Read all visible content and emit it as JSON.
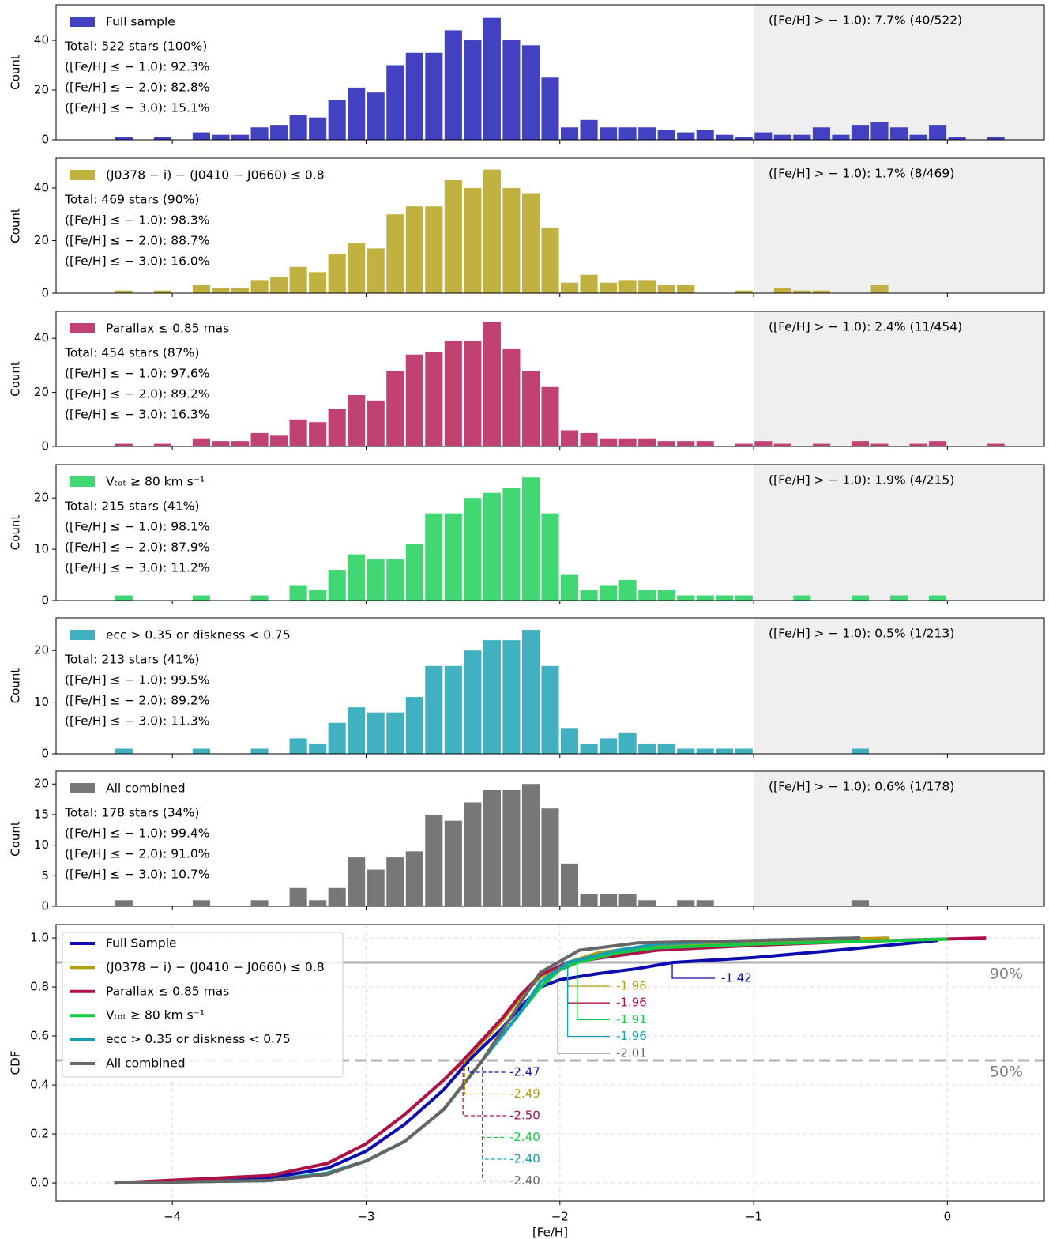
{
  "chart_data": [
    {
      "type": "histogram",
      "xlim": [
        -4.6,
        0.5
      ],
      "ylim": [
        0,
        54.3
      ],
      "yticks": [
        0,
        20,
        40
      ],
      "ylabel": "Count",
      "shade_above": -1,
      "bins": [
        -4.3,
        -4.2,
        -4.1,
        -4.0,
        -3.9,
        -3.8,
        -3.7,
        -3.6,
        -3.5,
        -3.4,
        -3.3,
        -3.2,
        -3.1,
        -3.0,
        -2.9,
        -2.8,
        -2.7,
        -2.6,
        -2.5,
        -2.4,
        -2.3,
        -2.2,
        -2.1,
        -2.0,
        -1.9,
        -1.8,
        -1.7,
        -1.6,
        -1.5,
        -1.4,
        -1.3,
        -1.2,
        -1.1,
        -1.0,
        -0.9,
        -0.8,
        -0.7,
        -0.6,
        -0.5,
        -0.4,
        -0.3,
        -0.2,
        -0.1,
        0.0,
        0.1,
        0.2,
        0.3
      ],
      "series": [
        {
          "name": "Full sample",
          "color": "#4141c2",
          "values": [
            1,
            0,
            1,
            0,
            3,
            2,
            2,
            5,
            6,
            10,
            9,
            16,
            21,
            19,
            30,
            35,
            35,
            44,
            40,
            49,
            40,
            38,
            25,
            5,
            8,
            5,
            5,
            5,
            4,
            3,
            4,
            2,
            1,
            3,
            2,
            2,
            5,
            2,
            6,
            7,
            5,
            2,
            6,
            1,
            0,
            1
          ]
        }
      ],
      "annotations": [
        "Total: 522 stars (100%)",
        "([Fe/H] ≤ − 1.0): 92.3%",
        "([Fe/H] ≤ − 2.0): 82.8%",
        "([Fe/H] ≤ − 3.0): 15.1%"
      ],
      "right_annotation": "([Fe/H] > − 1.0): 7.7% (40/522)"
    },
    {
      "type": "histogram",
      "xlim": [
        -4.6,
        0.5
      ],
      "ylim": [
        0,
        51.4
      ],
      "yticks": [
        0,
        20,
        40
      ],
      "ylabel": "Count",
      "shade_above": -1,
      "bins": [
        -4.3,
        -4.2,
        -4.1,
        -4.0,
        -3.9,
        -3.8,
        -3.7,
        -3.6,
        -3.5,
        -3.4,
        -3.3,
        -3.2,
        -3.1,
        -3.0,
        -2.9,
        -2.8,
        -2.7,
        -2.6,
        -2.5,
        -2.4,
        -2.3,
        -2.2,
        -2.1,
        -2.0,
        -1.9,
        -1.8,
        -1.7,
        -1.6,
        -1.5,
        -1.4,
        -1.3,
        -1.2,
        -1.1,
        -1.0,
        -0.9,
        -0.8,
        -0.7,
        -0.6,
        -0.5,
        -0.4,
        -0.3,
        -0.2,
        -0.1,
        0.0,
        0.1,
        0.2,
        0.3
      ],
      "series": [
        {
          "name": "(J0378 − i) − (J0410 − J0660) ≤ 0.8",
          "color": "#c1b140",
          "values": [
            1,
            0,
            1,
            0,
            3,
            2,
            2,
            5,
            6,
            10,
            8,
            15,
            19,
            17,
            30,
            33,
            33,
            43,
            40,
            47,
            40,
            38,
            25,
            4,
            7,
            4,
            5,
            5,
            3,
            3,
            0,
            0,
            1,
            0,
            2,
            1,
            1,
            0,
            0,
            3,
            0,
            0,
            0,
            0,
            0,
            0
          ]
        }
      ],
      "annotations": [
        "Total: 469 stars (90%)",
        "([Fe/H] ≤ − 1.0): 98.3%",
        "([Fe/H] ≤ − 2.0): 88.7%",
        "([Fe/H] ≤ − 3.0): 16.0%"
      ],
      "right_annotation": "([Fe/H] > − 1.0): 1.7% (8/469)"
    },
    {
      "type": "histogram",
      "xlim": [
        -4.6,
        0.5
      ],
      "ylim": [
        0,
        50
      ],
      "yticks": [
        0,
        20,
        40
      ],
      "ylabel": "Count",
      "shade_above": -1,
      "bins": [
        -4.3,
        -4.2,
        -4.1,
        -4.0,
        -3.9,
        -3.8,
        -3.7,
        -3.6,
        -3.5,
        -3.4,
        -3.3,
        -3.2,
        -3.1,
        -3.0,
        -2.9,
        -2.8,
        -2.7,
        -2.6,
        -2.5,
        -2.4,
        -2.3,
        -2.2,
        -2.1,
        -2.0,
        -1.9,
        -1.8,
        -1.7,
        -1.6,
        -1.5,
        -1.4,
        -1.3,
        -1.2,
        -1.1,
        -1.0,
        -0.9,
        -0.8,
        -0.7,
        -0.6,
        -0.5,
        -0.4,
        -0.3,
        -0.2,
        -0.1,
        0.0,
        0.1,
        0.2,
        0.3
      ],
      "series": [
        {
          "name": "Parallax ≤ 0.85 mas",
          "color": "#c14272",
          "values": [
            1,
            0,
            1,
            0,
            3,
            2,
            2,
            5,
            4,
            10,
            9,
            14,
            19,
            17,
            28,
            34,
            35,
            39,
            39,
            46,
            36,
            28,
            22,
            6,
            5,
            3,
            3,
            3,
            2,
            2,
            2,
            0,
            1,
            2,
            1,
            0,
            1,
            0,
            2,
            1,
            0,
            1,
            2,
            0,
            0,
            1
          ]
        }
      ],
      "annotations": [
        "Total: 454 stars (87%)",
        "([Fe/H] ≤ − 1.0): 97.6%",
        "([Fe/H] ≤ − 2.0): 89.2%",
        "([Fe/H] ≤ − 3.0): 16.3%"
      ],
      "right_annotation": "([Fe/H] > − 1.0): 2.4% (11/454)"
    },
    {
      "type": "histogram",
      "xlim": [
        -4.6,
        0.5
      ],
      "ylim": [
        0,
        26.5
      ],
      "yticks": [
        0,
        10,
        20
      ],
      "ylabel": "Count",
      "shade_above": -1,
      "bins": [
        -4.3,
        -4.2,
        -4.1,
        -4.0,
        -3.9,
        -3.8,
        -3.7,
        -3.6,
        -3.5,
        -3.4,
        -3.3,
        -3.2,
        -3.1,
        -3.0,
        -2.9,
        -2.8,
        -2.7,
        -2.6,
        -2.5,
        -2.4,
        -2.3,
        -2.2,
        -2.1,
        -2.0,
        -1.9,
        -1.8,
        -1.7,
        -1.6,
        -1.5,
        -1.4,
        -1.3,
        -1.2,
        -1.1,
        -1.0,
        -0.9,
        -0.8,
        -0.7,
        -0.6,
        -0.5,
        -0.4,
        -0.3,
        -0.2,
        -0.1,
        0.0,
        0.1,
        0.2,
        0.3
      ],
      "series": [
        {
          "name": "Vₜₒₜ ≥ 80 km s⁻¹",
          "color": "#41d873",
          "values": [
            1,
            0,
            0,
            0,
            1,
            0,
            0,
            1,
            0,
            3,
            2,
            6,
            9,
            8,
            8,
            11,
            17,
            17,
            20,
            21,
            22,
            24,
            17,
            5,
            2,
            3,
            4,
            2,
            2,
            1,
            1,
            1,
            1,
            0,
            0,
            1,
            0,
            0,
            1,
            0,
            1,
            0,
            1,
            0,
            0,
            0
          ]
        }
      ],
      "annotations": [
        "Total: 215 stars (41%)",
        "([Fe/H] ≤ − 1.0): 98.1%",
        "([Fe/H] ≤ − 2.0): 87.9%",
        "([Fe/H] ≤ − 3.0): 11.2%"
      ],
      "right_annotation": "([Fe/H] > − 1.0): 1.9% (4/215)"
    },
    {
      "type": "histogram",
      "xlim": [
        -4.6,
        0.5
      ],
      "ylim": [
        0,
        26.3
      ],
      "yticks": [
        0,
        10,
        20
      ],
      "ylabel": "Count",
      "shade_above": -1,
      "bins": [
        -4.3,
        -4.2,
        -4.1,
        -4.0,
        -3.9,
        -3.8,
        -3.7,
        -3.6,
        -3.5,
        -3.4,
        -3.3,
        -3.2,
        -3.1,
        -3.0,
        -2.9,
        -2.8,
        -2.7,
        -2.6,
        -2.5,
        -2.4,
        -2.3,
        -2.2,
        -2.1,
        -2.0,
        -1.9,
        -1.8,
        -1.7,
        -1.6,
        -1.5,
        -1.4,
        -1.3,
        -1.2,
        -1.1,
        -1.0,
        -0.9,
        -0.8,
        -0.7,
        -0.6,
        -0.5,
        -0.4,
        -0.3,
        -0.2,
        -0.1,
        0.0,
        0.1,
        0.2,
        0.3
      ],
      "series": [
        {
          "name": "ecc > 0.35 or diskness < 0.75",
          "color": "#41b1c2",
          "values": [
            1,
            0,
            0,
            0,
            1,
            0,
            0,
            1,
            0,
            3,
            2,
            6,
            9,
            8,
            8,
            11,
            17,
            17,
            20,
            22,
            22,
            24,
            17,
            5,
            2,
            3,
            4,
            2,
            2,
            1,
            1,
            1,
            1,
            0,
            0,
            0,
            0,
            0,
            1,
            0,
            0,
            0,
            0,
            0,
            0,
            0
          ]
        }
      ],
      "annotations": [
        "Total: 213 stars (41%)",
        "([Fe/H] ≤ − 1.0): 99.5%",
        "([Fe/H] ≤ − 2.0): 89.2%",
        "([Fe/H] ≤ − 3.0): 11.3%"
      ],
      "right_annotation": "([Fe/H] > − 1.0): 0.5% (1/213)"
    },
    {
      "type": "histogram",
      "xlim": [
        -4.6,
        0.5
      ],
      "ylim": [
        0,
        22.1
      ],
      "yticks": [
        0,
        5,
        10,
        15,
        20
      ],
      "ylabel": "Count",
      "shade_above": -1,
      "bins": [
        -4.3,
        -4.2,
        -4.1,
        -4.0,
        -3.9,
        -3.8,
        -3.7,
        -3.6,
        -3.5,
        -3.4,
        -3.3,
        -3.2,
        -3.1,
        -3.0,
        -2.9,
        -2.8,
        -2.7,
        -2.6,
        -2.5,
        -2.4,
        -2.3,
        -2.2,
        -2.1,
        -2.0,
        -1.9,
        -1.8,
        -1.7,
        -1.6,
        -1.5,
        -1.4,
        -1.3,
        -1.2,
        -1.1,
        -1.0,
        -0.9,
        -0.8,
        -0.7,
        -0.6,
        -0.5,
        -0.4,
        -0.3,
        -0.2,
        -0.1,
        0.0,
        0.1,
        0.2,
        0.3
      ],
      "series": [
        {
          "name": "All combined",
          "color": "#777777",
          "values": [
            1,
            0,
            0,
            0,
            1,
            0,
            0,
            1,
            0,
            3,
            1,
            3,
            8,
            6,
            8,
            9,
            15,
            14,
            17,
            19,
            19,
            20,
            16,
            7,
            2,
            2,
            2,
            1,
            0,
            1,
            1,
            0,
            0,
            0,
            0,
            0,
            0,
            0,
            1,
            0,
            0,
            0,
            0,
            0,
            0,
            0
          ]
        }
      ],
      "annotations": [
        "Total: 178 stars (34%)",
        "([Fe/H] ≤ − 1.0): 99.4%",
        "([Fe/H] ≤ − 2.0): 91.0%",
        "([Fe/H] ≤ − 3.0): 10.7%"
      ],
      "right_annotation": "([Fe/H] > − 1.0): 0.6% (1/178)"
    },
    {
      "type": "line",
      "xlim": [
        -4.6,
        0.5
      ],
      "ylim": [
        -0.074,
        1.055
      ],
      "xlabel": "[Fe/H]",
      "ylabel": "CDF",
      "grid": true,
      "legend": "upper left",
      "xticks": [
        {
          "value": -4,
          "label": "−4"
        },
        {
          "value": -3,
          "label": "−3"
        },
        {
          "value": -2,
          "label": "−2"
        },
        {
          "value": -1,
          "label": "−1"
        },
        0
      ],
      "yticks": [
        {
          "value": 0,
          "label": "0.0"
        },
        0.2,
        0.4,
        0.6,
        0.8,
        {
          "value": 1,
          "label": "1.0"
        }
      ],
      "hlines": [
        {
          "value": 0.9,
          "label": "90%",
          "style": "solid"
        },
        {
          "value": 0.5,
          "label": "50%",
          "style": "dashed"
        }
      ],
      "series": [
        {
          "name": "Full Sample",
          "color": "#0c0cb0",
          "x": [
            -4.3,
            -3.5,
            -3.2,
            -3.0,
            -2.8,
            -2.6,
            -2.47,
            -2.3,
            -2.2,
            -2.1,
            -2.0,
            -1.8,
            -1.6,
            -1.42,
            -1.0,
            -0.5,
            -0.05
          ],
          "values": [
            0,
            0.02,
            0.06,
            0.13,
            0.24,
            0.38,
            0.5,
            0.63,
            0.72,
            0.8,
            0.83,
            0.855,
            0.875,
            0.9,
            0.92,
            0.955,
            0.99
          ],
          "p50": {
            "value": -2.47,
            "label": "-2.47"
          },
          "p90": {
            "value": -1.42,
            "label": "-1.42"
          }
        },
        {
          "name": "(J0378 − i) − (J0410 − J0660) ≤ 0.8",
          "color": "#b3a012",
          "x": [
            -4.3,
            -3.5,
            -3.2,
            -3.0,
            -2.8,
            -2.6,
            -2.49,
            -2.3,
            -2.2,
            -2.1,
            -1.96,
            -1.8,
            -1.5,
            -1.0,
            -0.3
          ],
          "values": [
            0,
            0.03,
            0.08,
            0.16,
            0.28,
            0.42,
            0.5,
            0.66,
            0.76,
            0.84,
            0.9,
            0.94,
            0.97,
            0.985,
            1.0
          ],
          "p50": {
            "value": -2.49,
            "label": "-2.49"
          },
          "p90": {
            "value": -1.96,
            "label": "-1.96"
          }
        },
        {
          "name": "Parallax ≤ 0.85 mas",
          "color": "#b0104a",
          "x": [
            -4.3,
            -3.5,
            -3.2,
            -3.0,
            -2.8,
            -2.6,
            -2.5,
            -2.3,
            -2.2,
            -2.1,
            -1.96,
            -1.5,
            -1.0,
            -0.5,
            0.2
          ],
          "values": [
            0,
            0.03,
            0.08,
            0.16,
            0.28,
            0.42,
            0.5,
            0.67,
            0.77,
            0.85,
            0.9,
            0.95,
            0.97,
            0.985,
            1.0
          ],
          "p50": {
            "value": -2.5,
            "label": "-2.50"
          },
          "p90": {
            "value": -1.96,
            "label": "-1.96"
          }
        },
        {
          "name": "Vₜₒₜ ≥ 80 km s⁻¹",
          "color": "#14cc44",
          "x": [
            -4.3,
            -3.5,
            -3.2,
            -3.0,
            -2.8,
            -2.6,
            -2.4,
            -2.2,
            -2.1,
            -2.0,
            -1.91,
            -1.7,
            -1.5,
            -1.0,
            -0.5,
            0.0
          ],
          "values": [
            0,
            0.01,
            0.04,
            0.09,
            0.17,
            0.3,
            0.5,
            0.7,
            0.8,
            0.87,
            0.9,
            0.94,
            0.96,
            0.975,
            0.985,
            0.995
          ],
          "p50": {
            "value": -2.4,
            "label": "-2.40"
          },
          "p90": {
            "value": -1.91,
            "label": "-1.91"
          }
        },
        {
          "name": "ecc > 0.35 or diskness < 0.75",
          "color": "#14a0b0",
          "x": [
            -4.3,
            -3.5,
            -3.2,
            -3.0,
            -2.8,
            -2.6,
            -2.4,
            -2.2,
            -2.1,
            -1.96,
            -1.7,
            -1.5,
            -1.0,
            -0.45
          ],
          "values": [
            0,
            0.01,
            0.04,
            0.09,
            0.17,
            0.3,
            0.5,
            0.7,
            0.82,
            0.9,
            0.95,
            0.975,
            0.99,
            1.0
          ],
          "p50": {
            "value": -2.4,
            "label": "-2.40"
          },
          "p90": {
            "value": -1.96,
            "label": "-1.96"
          }
        },
        {
          "name": "All combined",
          "color": "#666666",
          "x": [
            -4.3,
            -3.5,
            -3.2,
            -3.0,
            -2.8,
            -2.6,
            -2.4,
            -2.2,
            -2.1,
            -2.01,
            -1.9,
            -1.6,
            -1.0,
            -0.45
          ],
          "values": [
            0,
            0.01,
            0.035,
            0.09,
            0.17,
            0.3,
            0.5,
            0.74,
            0.86,
            0.9,
            0.95,
            0.98,
            0.99,
            1.0
          ],
          "p50": {
            "value": -2.4,
            "label": "-2.40"
          },
          "p90": {
            "value": -2.01,
            "label": "-2.01"
          }
        }
      ]
    }
  ]
}
